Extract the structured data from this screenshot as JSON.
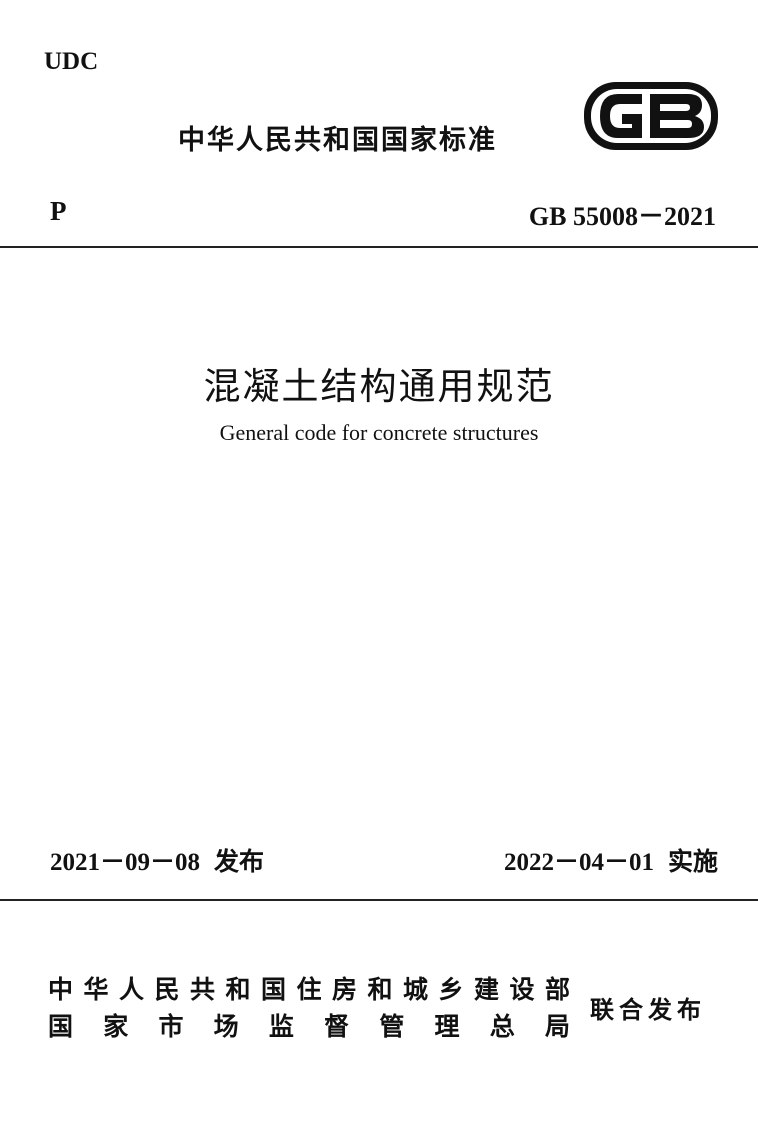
{
  "header": {
    "udc": "UDC",
    "national_standard": "中华人民共和国国家标准",
    "logo_text": "GB",
    "category": "P",
    "standard_number": "GB 55008－2021"
  },
  "title": {
    "chinese": "混凝土结构通用规范",
    "english": "General code for concrete structures"
  },
  "dates": {
    "issue_date": "2021－09－08",
    "issue_label": "发布",
    "implementation_date": "2022－04－01",
    "implementation_label": "实施"
  },
  "issuers": {
    "line1": "中华人民共和国住房和城乡建设部",
    "line2": "国家市场监督管理总局",
    "joint_label": "联合发布"
  }
}
